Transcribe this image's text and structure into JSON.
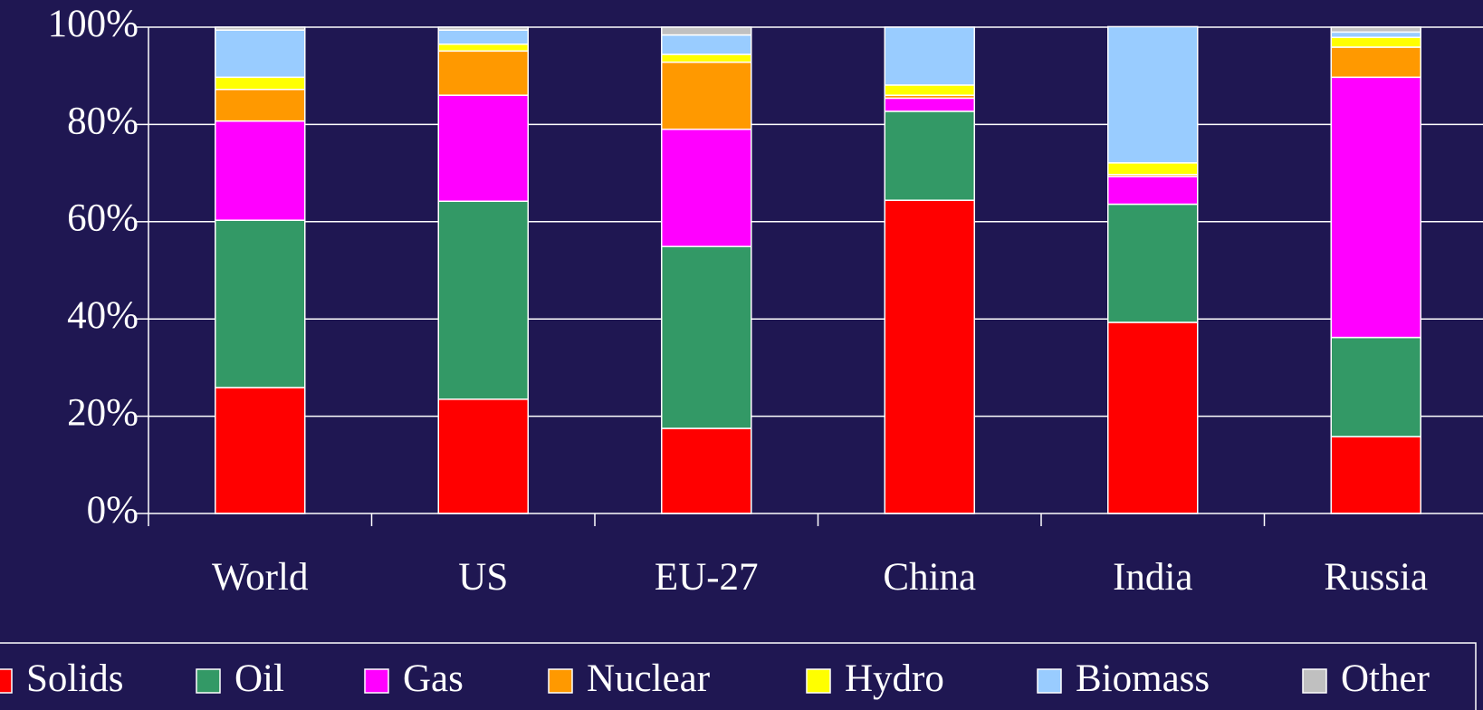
{
  "chart_data": {
    "type": "stacked_bar",
    "categories": [
      "World",
      "US",
      "EU-27",
      "China",
      "India",
      "Russia"
    ],
    "series": [
      {
        "name": "Solids",
        "color": "#ff0000",
        "values": [
          25.9,
          23.5,
          17.5,
          64.4,
          39.3,
          15.8
        ]
      },
      {
        "name": "Oil",
        "color": "#339966",
        "values": [
          34.4,
          40.7,
          37.4,
          18.3,
          24.3,
          20.4
        ]
      },
      {
        "name": "Gas",
        "color": "#ff00ff",
        "values": [
          20.4,
          21.8,
          24.1,
          2.7,
          5.7,
          53.5
        ]
      },
      {
        "name": "Nuclear",
        "color": "#ff9900",
        "values": [
          6.5,
          9.1,
          13.8,
          0.6,
          0.4,
          6.2
        ]
      },
      {
        "name": "Hydro",
        "color": "#ffff00",
        "values": [
          2.5,
          1.4,
          1.6,
          2.1,
          2.4,
          2.0
        ]
      },
      {
        "name": "Biomass",
        "color": "#99ccff",
        "values": [
          9.7,
          2.9,
          4.0,
          11.9,
          28.0,
          1.1
        ]
      },
      {
        "name": "Other",
        "color": "#c0c0c0",
        "values": [
          0.6,
          0.6,
          1.6,
          0,
          0,
          1.0
        ]
      }
    ],
    "ylim": [
      0,
      100
    ],
    "yticks": [
      {
        "value": 0,
        "label": "0%"
      },
      {
        "value": 20,
        "label": "20%"
      },
      {
        "value": 40,
        "label": "40%"
      },
      {
        "value": 60,
        "label": "60%"
      },
      {
        "value": 80,
        "label": "80%"
      },
      {
        "value": 100,
        "label": "100%"
      }
    ],
    "grid": true,
    "legend": "bottom"
  }
}
